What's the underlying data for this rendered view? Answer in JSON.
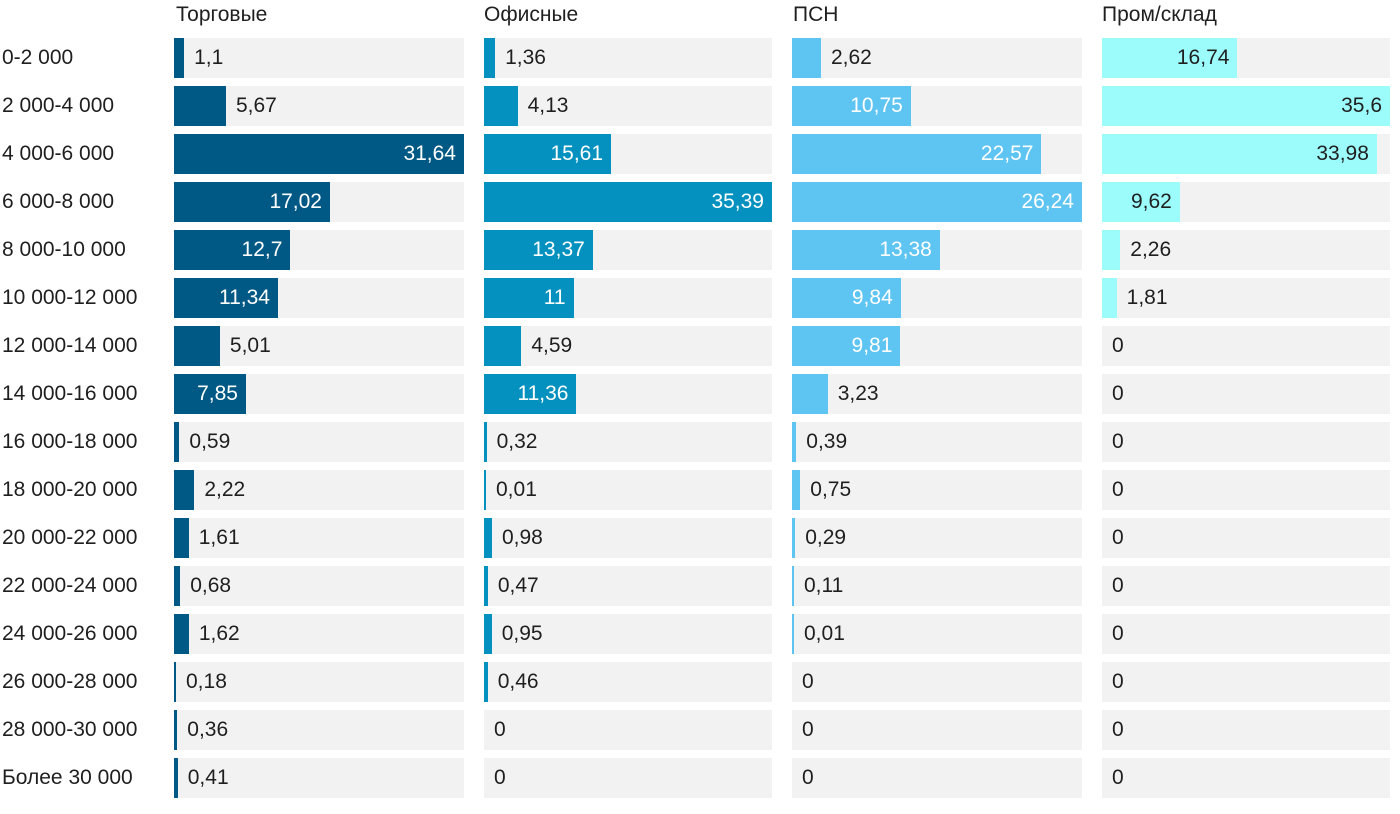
{
  "chart_data": {
    "type": "bar",
    "orientation": "horizontal",
    "layout": "small-multiples",
    "categories": [
      "0-2 000",
      "2 000-4 000",
      "4 000-6 000",
      "6 000-8 000",
      "8 000-10 000",
      "10 000-12 000",
      "12 000-14 000",
      "14 000-16 000",
      "16 000-18 000",
      "18 000-20 000",
      "20 000-22 000",
      "22 000-24 000",
      "24 000-26 000",
      "26 000-28 000",
      "28 000-30 000",
      "Более 30 000"
    ],
    "series": [
      {
        "name": "Торговые",
        "color": "#005985",
        "max": 31.64,
        "values": [
          1.1,
          5.67,
          31.64,
          17.02,
          12.7,
          11.34,
          5.01,
          7.85,
          0.59,
          2.22,
          1.61,
          0.68,
          1.62,
          0.18,
          0.36,
          0.41
        ],
        "labels": [
          "1,1",
          "5,67",
          "31,64",
          "17,02",
          "12,7",
          "11,34",
          "5,01",
          "7,85",
          "0,59",
          "2,22",
          "1,61",
          "0,68",
          "1,62",
          "0,18",
          "0,36",
          "0,41"
        ]
      },
      {
        "name": "Офисные",
        "color": "#0591bf",
        "max": 35.39,
        "values": [
          1.36,
          4.13,
          15.61,
          35.39,
          13.37,
          11,
          4.59,
          11.36,
          0.32,
          0.01,
          0.98,
          0.47,
          0.95,
          0.46,
          0,
          0
        ],
        "labels": [
          "1,36",
          "4,13",
          "15,61",
          "35,39",
          "13,37",
          "11",
          "4,59",
          "11,36",
          "0,32",
          "0,01",
          "0,98",
          "0,47",
          "0,95",
          "0,46",
          "0",
          "0"
        ]
      },
      {
        "name": "ПСН",
        "color": "#5ec4f2",
        "max": 26.24,
        "values": [
          2.62,
          10.75,
          22.57,
          26.24,
          13.38,
          9.84,
          9.81,
          3.23,
          0.39,
          0.75,
          0.29,
          0.11,
          0.01,
          0,
          0,
          0
        ],
        "labels": [
          "2,62",
          "10,75",
          "22,57",
          "26,24",
          "13,38",
          "9,84",
          "9,81",
          "3,23",
          "0,39",
          "0,75",
          "0,29",
          "0,11",
          "0,01",
          "0",
          "0",
          "0"
        ]
      },
      {
        "name": "Пром/склад",
        "color": "#9cfcfc",
        "max": 35.6,
        "values": [
          16.74,
          35.6,
          33.98,
          9.62,
          2.26,
          1.81,
          0,
          0,
          0,
          0,
          0,
          0,
          0,
          0,
          0,
          0
        ],
        "labels": [
          "16,74",
          "35,6",
          "33,98",
          "9,62",
          "2,26",
          "1,81",
          "0",
          "0",
          "0",
          "0",
          "0",
          "0",
          "0",
          "0",
          "0",
          "0"
        ]
      }
    ]
  }
}
